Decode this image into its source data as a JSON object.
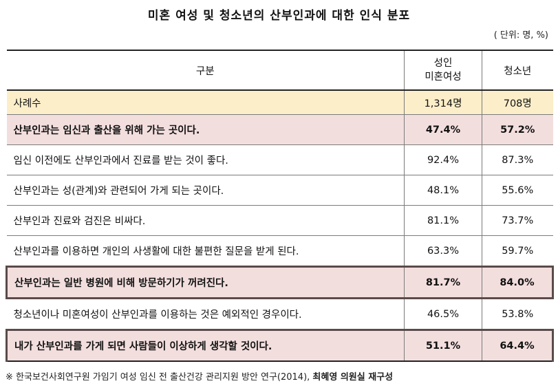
{
  "title": "미혼 여성 및 청소년의 산부인과에 대한 인식 분포",
  "unit": "( 단위: 명, %)",
  "table": {
    "headers": {
      "category": "구분",
      "adult_line1": "성인",
      "adult_line2": "미혼여성",
      "teen": "청소년"
    },
    "count_row": {
      "label": "사례수",
      "adult": "1,314명",
      "teen": "708명"
    },
    "rows": [
      {
        "label": "산부인과는 임신과 출산을 위해 가는 곳이다.",
        "adult": "47.4%",
        "teen": "57.2%"
      },
      {
        "label": "임신 이전에도 산부인과에서 진료를 받는 것이 좋다.",
        "adult": "92.4%",
        "teen": "87.3%"
      },
      {
        "label": "산부인과는 성(관계)와 관련되어 가게 되는 곳이다.",
        "adult": "48.1%",
        "teen": "55.6%"
      },
      {
        "label": "산부인과 진료와 검진은 비싸다.",
        "adult": "81.1%",
        "teen": "73.7%"
      },
      {
        "label": "산부인과를 이용하면 개인의 사생활에 대한 불편한 질문을 받게 된다.",
        "adult": "63.3%",
        "teen": "59.7%"
      },
      {
        "label": "산부인과는 일반 병원에 비해 방문하기가 꺼려진다.",
        "adult": "81.7%",
        "teen": "84.0%"
      },
      {
        "label": "청소년이나 미혼여성이 산부인과를 이용하는 것은 예외적인 경우이다.",
        "adult": "46.5%",
        "teen": "53.8%"
      },
      {
        "label": "내가 산부인과를 가게 되면 사람들이 이상하게 생각할 것이다.",
        "adult": "51.1%",
        "teen": "64.4%"
      }
    ]
  },
  "source": {
    "prefix": "※ 한국보건사회연구원 가임기 여성 임신 전 출산건강 관리지원 방안 연구(2014), ",
    "credit": "최혜영 의원실 재구성"
  }
}
